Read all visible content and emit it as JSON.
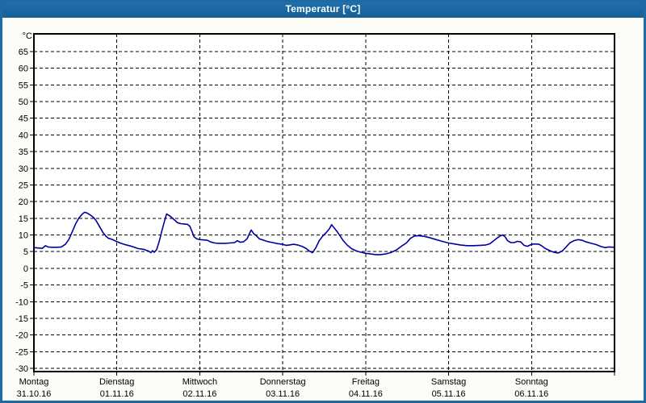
{
  "window": {
    "title": "Temperatur [°C]",
    "titlebar_color": "#1c6ba4",
    "border_color": "#1c6ba4",
    "background_color": "#fcfdf8"
  },
  "chart_data": {
    "type": "line",
    "title": "Temperatur [°C]",
    "ylabel": "°C",
    "xlabel": "",
    "y_min": -30,
    "y_max": 65,
    "y_step": 5,
    "grid": "dashed",
    "legend": "none",
    "line_color": "#0000a0",
    "grid_color": "#000000",
    "x_axis": {
      "days": [
        {
          "name": "Montag",
          "date": "31.10.16"
        },
        {
          "name": "Dienstag",
          "date": "01.11.16"
        },
        {
          "name": "Mittwoch",
          "date": "02.11.16"
        },
        {
          "name": "Donnerstag",
          "date": "03.11.16"
        },
        {
          "name": "Freitag",
          "date": "04.11.16"
        },
        {
          "name": "Samstag",
          "date": "05.11.16"
        },
        {
          "name": "Sonntag",
          "date": "06.11.16"
        }
      ]
    },
    "points": [
      [
        0.0,
        6.2
      ],
      [
        0.05,
        6.1
      ],
      [
        0.1,
        6.0
      ],
      [
        0.14,
        6.8
      ],
      [
        0.17,
        6.4
      ],
      [
        0.22,
        6.3
      ],
      [
        0.28,
        6.3
      ],
      [
        0.33,
        6.4
      ],
      [
        0.38,
        7.2
      ],
      [
        0.42,
        8.6
      ],
      [
        0.46,
        10.8
      ],
      [
        0.5,
        13.2
      ],
      [
        0.54,
        15.0
      ],
      [
        0.58,
        16.2
      ],
      [
        0.61,
        16.8
      ],
      [
        0.64,
        16.6
      ],
      [
        0.68,
        16.0
      ],
      [
        0.72,
        15.2
      ],
      [
        0.75,
        14.3
      ],
      [
        0.79,
        12.6
      ],
      [
        0.83,
        10.8
      ],
      [
        0.87,
        9.6
      ],
      [
        0.9,
        9.0
      ],
      [
        0.94,
        8.7
      ],
      [
        1.0,
        8.0
      ],
      [
        1.05,
        7.5
      ],
      [
        1.1,
        7.1
      ],
      [
        1.15,
        6.8
      ],
      [
        1.2,
        6.4
      ],
      [
        1.26,
        5.9
      ],
      [
        1.32,
        5.7
      ],
      [
        1.38,
        5.2
      ],
      [
        1.41,
        4.7
      ],
      [
        1.43,
        5.3
      ],
      [
        1.45,
        4.8
      ],
      [
        1.48,
        5.6
      ],
      [
        1.51,
        8.0
      ],
      [
        1.54,
        11.0
      ],
      [
        1.57,
        13.8
      ],
      [
        1.6,
        16.3
      ],
      [
        1.62,
        16.0
      ],
      [
        1.65,
        15.5
      ],
      [
        1.69,
        14.6
      ],
      [
        1.73,
        13.7
      ],
      [
        1.77,
        13.4
      ],
      [
        1.81,
        13.3
      ],
      [
        1.85,
        13.2
      ],
      [
        1.88,
        12.6
      ],
      [
        1.91,
        10.8
      ],
      [
        1.93,
        9.5
      ],
      [
        1.96,
        8.9
      ],
      [
        2.0,
        8.6
      ],
      [
        2.05,
        8.5
      ],
      [
        2.09,
        8.4
      ],
      [
        2.13,
        7.9
      ],
      [
        2.18,
        7.6
      ],
      [
        2.24,
        7.5
      ],
      [
        2.3,
        7.5
      ],
      [
        2.36,
        7.6
      ],
      [
        2.42,
        7.7
      ],
      [
        2.45,
        8.3
      ],
      [
        2.49,
        7.8
      ],
      [
        2.53,
        8.0
      ],
      [
        2.57,
        8.9
      ],
      [
        2.6,
        10.5
      ],
      [
        2.62,
        11.5
      ],
      [
        2.65,
        10.4
      ],
      [
        2.68,
        9.8
      ],
      [
        2.72,
        8.8
      ],
      [
        2.76,
        8.5
      ],
      [
        2.82,
        8.0
      ],
      [
        2.88,
        7.7
      ],
      [
        2.94,
        7.4
      ],
      [
        3.0,
        7.2
      ],
      [
        3.04,
        6.9
      ],
      [
        3.08,
        7.0
      ],
      [
        3.13,
        7.2
      ],
      [
        3.18,
        7.0
      ],
      [
        3.23,
        6.6
      ],
      [
        3.28,
        6.0
      ],
      [
        3.32,
        5.2
      ],
      [
        3.36,
        4.7
      ],
      [
        3.4,
        6.2
      ],
      [
        3.44,
        8.3
      ],
      [
        3.48,
        9.6
      ],
      [
        3.52,
        10.6
      ],
      [
        3.56,
        11.8
      ],
      [
        3.59,
        13.1
      ],
      [
        3.62,
        12.1
      ],
      [
        3.65,
        11.2
      ],
      [
        3.69,
        9.8
      ],
      [
        3.73,
        8.3
      ],
      [
        3.78,
        6.9
      ],
      [
        3.83,
        5.9
      ],
      [
        3.88,
        5.3
      ],
      [
        3.93,
        4.9
      ],
      [
        4.0,
        4.5
      ],
      [
        4.06,
        4.3
      ],
      [
        4.12,
        4.1
      ],
      [
        4.18,
        4.1
      ],
      [
        4.24,
        4.3
      ],
      [
        4.3,
        4.7
      ],
      [
        4.37,
        5.5
      ],
      [
        4.43,
        6.6
      ],
      [
        4.49,
        7.6
      ],
      [
        4.54,
        9.0
      ],
      [
        4.59,
        9.7
      ],
      [
        4.64,
        9.8
      ],
      [
        4.7,
        9.6
      ],
      [
        4.77,
        9.2
      ],
      [
        4.85,
        8.6
      ],
      [
        4.92,
        8.1
      ],
      [
        5.0,
        7.6
      ],
      [
        5.07,
        7.3
      ],
      [
        5.14,
        7.0
      ],
      [
        5.22,
        6.8
      ],
      [
        5.3,
        6.8
      ],
      [
        5.38,
        6.9
      ],
      [
        5.45,
        7.0
      ],
      [
        5.5,
        7.4
      ],
      [
        5.54,
        8.2
      ],
      [
        5.58,
        9.0
      ],
      [
        5.62,
        9.7
      ],
      [
        5.65,
        10.0
      ],
      [
        5.68,
        9.5
      ],
      [
        5.71,
        8.3
      ],
      [
        5.75,
        7.7
      ],
      [
        5.79,
        7.7
      ],
      [
        5.83,
        8.1
      ],
      [
        5.87,
        7.9
      ],
      [
        5.91,
        6.9
      ],
      [
        5.95,
        6.6
      ],
      [
        6.0,
        7.2
      ],
      [
        6.04,
        7.3
      ],
      [
        6.09,
        7.2
      ],
      [
        6.13,
        6.6
      ],
      [
        6.17,
        5.9
      ],
      [
        6.22,
        5.3
      ],
      [
        6.27,
        4.8
      ],
      [
        6.32,
        4.6
      ],
      [
        6.37,
        5.2
      ],
      [
        6.41,
        6.2
      ],
      [
        6.46,
        7.6
      ],
      [
        6.51,
        8.3
      ],
      [
        6.56,
        8.6
      ],
      [
        6.61,
        8.4
      ],
      [
        6.66,
        7.9
      ],
      [
        6.72,
        7.5
      ],
      [
        6.78,
        7.1
      ],
      [
        6.84,
        6.5
      ],
      [
        6.89,
        6.2
      ],
      [
        6.93,
        6.4
      ],
      [
        7.0,
        6.3
      ]
    ]
  }
}
